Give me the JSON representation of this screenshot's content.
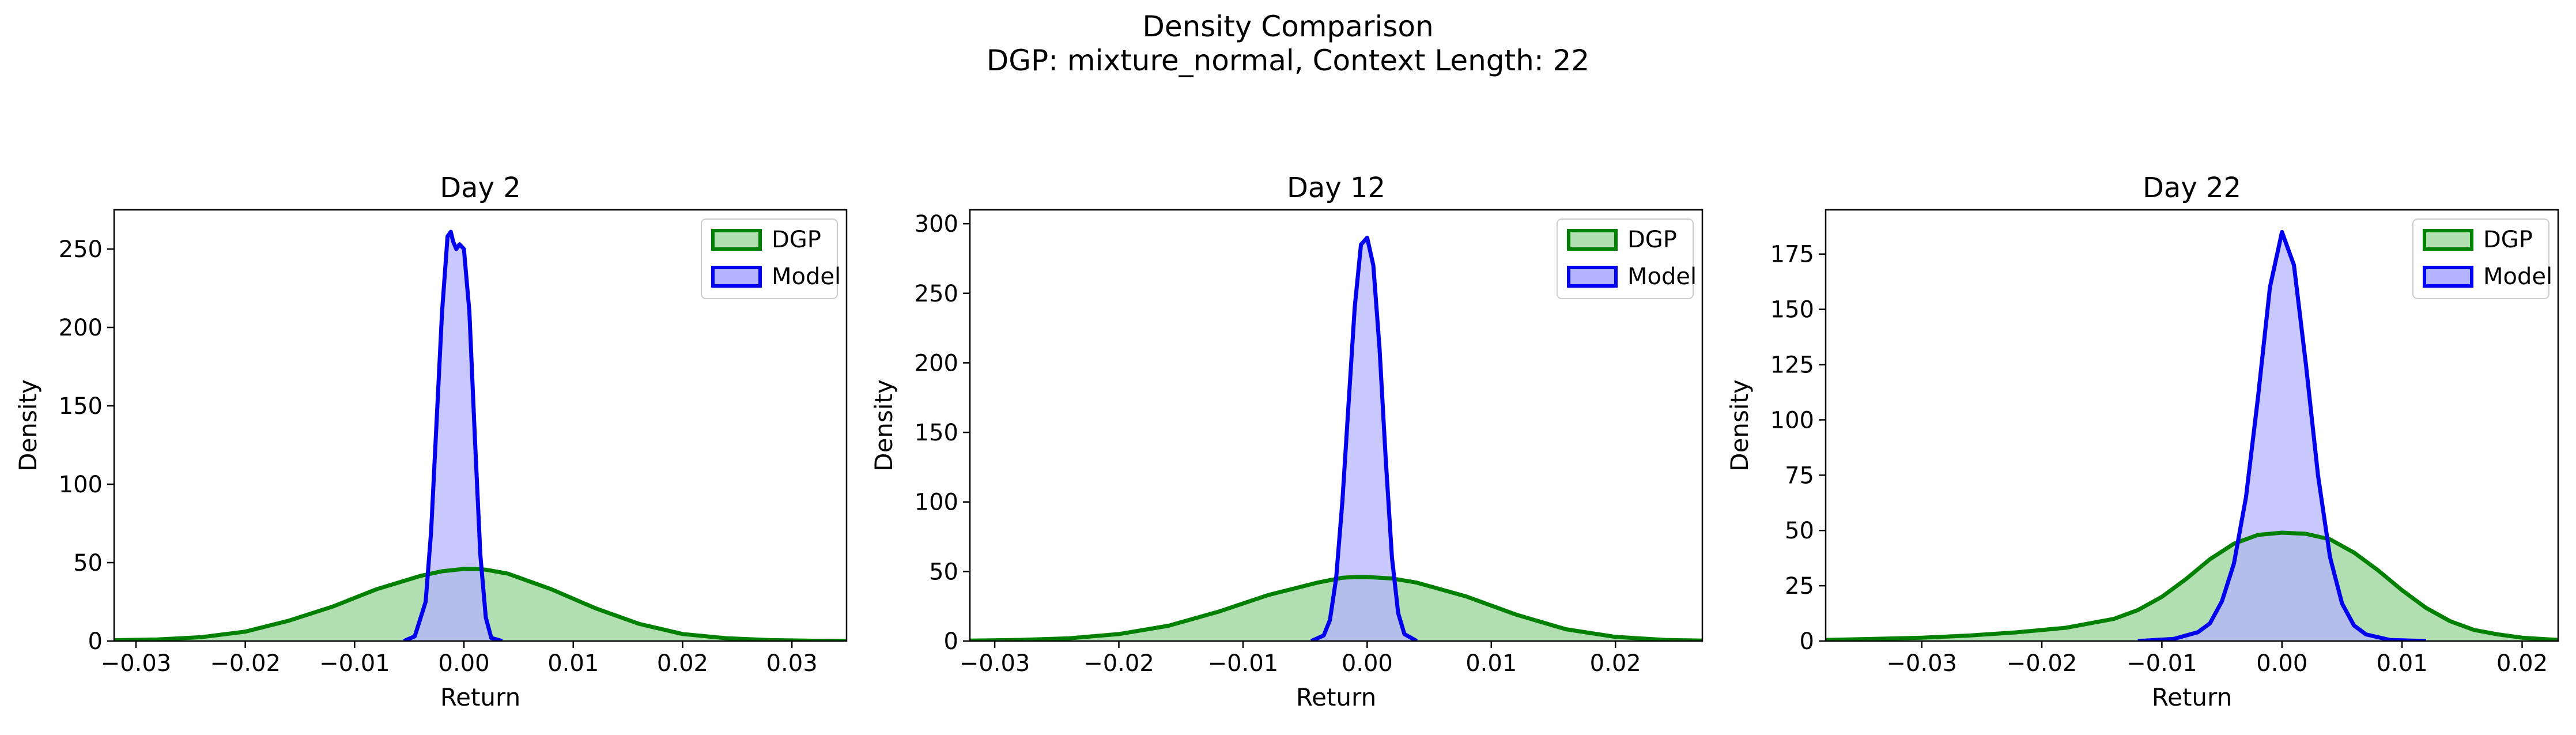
{
  "figure": {
    "title_line1": "Density Comparison",
    "title_line2": "DGP: mixture_normal, Context Length: 22"
  },
  "colors": {
    "dgp_line": "#008000",
    "dgp_fill": "#b2dfb2",
    "model_line": "#0000ee",
    "model_fill": "#b3b3ff",
    "overlap_fill": "#7f8fcc"
  },
  "chart_data": [
    {
      "type": "area",
      "title": "Day 2",
      "xlabel": "Return",
      "ylabel": "Density",
      "xlim": [
        -0.032,
        0.035
      ],
      "ylim": [
        0,
        275
      ],
      "xticks": [
        -0.03,
        -0.02,
        -0.01,
        0.0,
        0.01,
        0.02,
        0.03
      ],
      "xtick_labels": [
        "−0.03",
        "−0.02",
        "−0.01",
        "0.00",
        "0.01",
        "0.02",
        "0.03"
      ],
      "yticks": [
        0,
        50,
        100,
        150,
        200,
        250
      ],
      "ytick_labels": [
        "0",
        "50",
        "100",
        "150",
        "200",
        "250"
      ],
      "legend": {
        "position": "upper right",
        "entries": [
          "DGP",
          "Model"
        ]
      },
      "series": [
        {
          "name": "DGP",
          "x": [
            -0.032,
            -0.028,
            -0.024,
            -0.02,
            -0.016,
            -0.012,
            -0.008,
            -0.004,
            -0.002,
            0.0,
            0.001,
            0.002,
            0.004,
            0.008,
            0.012,
            0.016,
            0.02,
            0.024,
            0.028,
            0.032,
            0.035
          ],
          "y": [
            0.5,
            1,
            2.5,
            6,
            13,
            22,
            33,
            41.5,
            44.5,
            46,
            46,
            45.5,
            43,
            33,
            21,
            11,
            4.5,
            1.8,
            0.6,
            0.2,
            0.1
          ]
        },
        {
          "name": "Model",
          "x": [
            -0.0055,
            -0.0045,
            -0.0035,
            -0.003,
            -0.0025,
            -0.002,
            -0.0015,
            -0.0012,
            -0.001,
            -0.0007,
            -0.0004,
            0.0,
            0.0005,
            0.001,
            0.0015,
            0.002,
            0.0025,
            0.0035
          ],
          "y": [
            0,
            3,
            25,
            70,
            140,
            210,
            258,
            261,
            255,
            250,
            253,
            250,
            210,
            130,
            55,
            15,
            2,
            0
          ]
        }
      ]
    },
    {
      "type": "area",
      "title": "Day 12",
      "xlabel": "Return",
      "ylabel": "Density",
      "xlim": [
        -0.032,
        0.027
      ],
      "ylim": [
        0,
        310
      ],
      "xticks": [
        -0.03,
        -0.02,
        -0.01,
        0.0,
        0.01,
        0.02
      ],
      "xtick_labels": [
        "−0.03",
        "−0.02",
        "−0.01",
        "0.00",
        "0.01",
        "0.02"
      ],
      "yticks": [
        0,
        50,
        100,
        150,
        200,
        250,
        300
      ],
      "ytick_labels": [
        "0",
        "50",
        "100",
        "150",
        "200",
        "250",
        "300"
      ],
      "legend": {
        "position": "upper right",
        "entries": [
          "DGP",
          "Model"
        ]
      },
      "series": [
        {
          "name": "DGP",
          "x": [
            -0.032,
            -0.028,
            -0.024,
            -0.02,
            -0.016,
            -0.012,
            -0.008,
            -0.004,
            -0.002,
            -0.001,
            0.0,
            0.002,
            0.004,
            0.008,
            0.012,
            0.016,
            0.02,
            0.024,
            0.027
          ],
          "y": [
            0.3,
            0.8,
            2,
            5,
            11,
            21,
            33,
            42,
            45.5,
            46,
            46,
            45,
            42,
            32,
            19,
            8.5,
            3,
            0.8,
            0.3
          ]
        },
        {
          "name": "Model",
          "x": [
            -0.0045,
            -0.0035,
            -0.003,
            -0.0025,
            -0.002,
            -0.0015,
            -0.001,
            -0.0005,
            0.0,
            0.0005,
            0.001,
            0.0015,
            0.002,
            0.0025,
            0.003,
            0.004
          ],
          "y": [
            0,
            4,
            15,
            45,
            100,
            170,
            240,
            285,
            290,
            270,
            210,
            130,
            60,
            20,
            5,
            0
          ]
        }
      ]
    },
    {
      "type": "area",
      "title": "Day 22",
      "xlabel": "Return",
      "ylabel": "Density",
      "xlim": [
        -0.038,
        0.023
      ],
      "ylim": [
        0,
        195
      ],
      "xticks": [
        -0.03,
        -0.02,
        -0.01,
        0.0,
        0.01,
        0.02
      ],
      "xtick_labels": [
        "−0.03",
        "−0.02",
        "−0.01",
        "0.00",
        "0.01",
        "0.02"
      ],
      "yticks": [
        0,
        25,
        50,
        75,
        100,
        125,
        150,
        175
      ],
      "ytick_labels": [
        "0",
        "25",
        "50",
        "75",
        "100",
        "125",
        "150",
        "175"
      ],
      "legend": {
        "position": "upper right",
        "entries": [
          "DGP",
          "Model"
        ]
      },
      "series": [
        {
          "name": "DGP",
          "x": [
            -0.038,
            -0.034,
            -0.03,
            -0.026,
            -0.022,
            -0.018,
            -0.014,
            -0.012,
            -0.01,
            -0.008,
            -0.006,
            -0.004,
            -0.002,
            0.0,
            0.002,
            0.004,
            0.006,
            0.008,
            0.01,
            0.012,
            0.014,
            0.016,
            0.018,
            0.02,
            0.023
          ],
          "y": [
            0.5,
            1,
            1.5,
            2.5,
            4,
            6,
            10,
            14,
            20,
            28,
            37,
            44,
            48,
            49,
            48.5,
            46,
            40,
            32,
            23,
            15,
            9,
            5,
            3,
            1.5,
            0.5
          ]
        },
        {
          "name": "Model",
          "x": [
            -0.012,
            -0.009,
            -0.007,
            -0.006,
            -0.005,
            -0.004,
            -0.003,
            -0.002,
            -0.001,
            0.0,
            0.001,
            0.002,
            0.003,
            0.004,
            0.005,
            0.006,
            0.007,
            0.009,
            0.012
          ],
          "y": [
            0,
            1,
            4,
            8,
            18,
            35,
            65,
            110,
            160,
            185,
            170,
            125,
            75,
            38,
            17,
            7,
            3,
            0.5,
            0
          ]
        }
      ]
    }
  ]
}
